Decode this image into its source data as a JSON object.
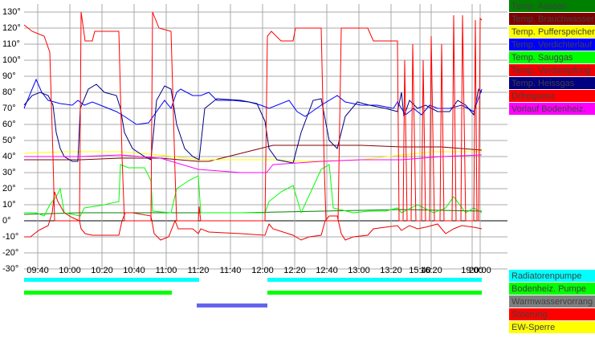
{
  "chart_data": {
    "type": "line",
    "xlim": [
      31.5,
      332.5
    ],
    "ylim": [
      -30,
      135
    ],
    "xticks": [
      {
        "value": 40,
        "label": "09:40"
      },
      {
        "value": 60,
        "label": "10:00"
      },
      {
        "value": 80,
        "label": "10:20"
      },
      {
        "value": 100,
        "label": "10:40"
      },
      {
        "value": 120,
        "label": "11:00"
      },
      {
        "value": 140,
        "label": "11:20"
      },
      {
        "value": 160,
        "label": "11:40"
      },
      {
        "value": 180,
        "label": "12:00"
      },
      {
        "value": 200,
        "label": "12:20"
      },
      {
        "value": 220,
        "label": "12:40"
      },
      {
        "value": 240,
        "label": "13:00"
      },
      {
        "value": 260,
        "label": "13:20"
      },
      {
        "value": 278,
        "label": "15:40"
      },
      {
        "value": 285,
        "label": "16:20"
      },
      {
        "value": 310.5,
        "label": "19:00"
      },
      {
        "value": 315.5,
        "label": "20:00"
      }
    ],
    "yticks": [
      {
        "value": 130,
        "label": "130°"
      },
      {
        "value": 120,
        "label": "120°"
      },
      {
        "value": 110,
        "label": "110°"
      },
      {
        "value": 100,
        "label": "100°"
      },
      {
        "value": 90,
        "label": "90°"
      },
      {
        "value": 80,
        "label": "80°"
      },
      {
        "value": 70,
        "label": "70°"
      },
      {
        "value": 60,
        "label": "60°"
      },
      {
        "value": 50,
        "label": "50°"
      },
      {
        "value": 40,
        "label": "40°"
      },
      {
        "value": 30,
        "label": "30°"
      },
      {
        "value": 20,
        "label": "20°"
      },
      {
        "value": 10,
        "label": "10°"
      },
      {
        "value": 0,
        "label": "0°"
      },
      {
        "value": -10,
        "label": "-10°"
      },
      {
        "value": -20,
        "label": "-20°"
      },
      {
        "value": -30,
        "label": "-30°"
      }
    ],
    "grid": true,
    "legend": "right",
    "series": [
      {
        "name": "Temp. Aussen",
        "color": "#008000",
        "x": [
          31.5,
          66.5,
          116.5,
          141.5,
          166.5,
          216.5,
          266.5,
          316.5
        ],
        "values": [
          4,
          5,
          5,
          5,
          5,
          6,
          7,
          6
        ]
      },
      {
        "name": "Temp. Brauchwasser",
        "color": "#800000",
        "x": [
          31.5,
          66.5,
          91.5,
          116.5,
          140,
          146.5,
          166.5,
          186.5,
          216.5,
          241.5,
          266.5,
          291.5,
          316.5
        ],
        "values": [
          38,
          38,
          39,
          39,
          37,
          37,
          42,
          47,
          47,
          47,
          46,
          46,
          44
        ]
      },
      {
        "name": "Temp. Pufferspeicher",
        "color": "#ffff00",
        "x": [
          31.5,
          56.5,
          91.5,
          116.5,
          140,
          166.5,
          186.5,
          206.5,
          241.5,
          266.5,
          286.5,
          316.5
        ],
        "values": [
          42,
          43,
          43,
          41,
          38,
          38,
          38,
          37,
          38,
          41,
          43,
          43
        ]
      },
      {
        "name": "Temp. Verdichterlauf",
        "color": "#0000ff",
        "x": [
          31.5,
          36.5,
          39,
          42.5,
          46.5,
          54,
          61.5,
          65,
          69,
          74,
          79,
          89,
          94,
          101.5,
          109,
          114,
          119,
          123,
          126.5,
          129,
          136.5,
          141.5,
          146.5,
          151.5,
          161.5,
          171.5,
          179,
          184,
          189,
          196.5,
          201.5,
          206.5,
          216.5,
          226.5,
          231.5,
          241.5,
          251.5,
          261.5,
          264,
          269,
          274,
          279,
          284,
          289,
          296.5,
          304,
          311.5,
          316.5
        ],
        "values": [
          70,
          82,
          88,
          80,
          75,
          73,
          72,
          75,
          72,
          74,
          72,
          68,
          65,
          60,
          61,
          68,
          75,
          70,
          80,
          82,
          78,
          78,
          80,
          75,
          75,
          74,
          72,
          70,
          72,
          75,
          68,
          65,
          72,
          78,
          74,
          72,
          72,
          70,
          74,
          66,
          70,
          66,
          72,
          70,
          70,
          72,
          68,
          82
        ]
      },
      {
        "name": "Temp. Sauggas",
        "color": "#00ff00",
        "x": [
          31.5,
          39,
          44,
          47.5,
          51.5,
          54,
          56.5,
          66.5,
          69,
          81.5,
          90.5,
          91.5,
          96.5,
          106.5,
          110.5,
          111.5,
          123,
          126.5,
          134,
          140,
          141.5,
          166.5,
          181.5,
          184,
          191.5,
          199,
          204,
          216.5,
          221.5,
          224,
          236.5,
          246.5,
          256.5,
          264,
          266.5,
          276.5,
          286.5,
          294,
          299,
          306.5,
          311.5,
          316.5
        ],
        "values": [
          5,
          5,
          3,
          10,
          15,
          20,
          5,
          3,
          8,
          10,
          12,
          35,
          33,
          33,
          25,
          6,
          5,
          20,
          25,
          28,
          5,
          5,
          5,
          12,
          18,
          22,
          5,
          32,
          35,
          8,
          5,
          6,
          6,
          8,
          5,
          10,
          5,
          8,
          15,
          5,
          8,
          5
        ]
      },
      {
        "name": "Temp. Verdampfung",
        "color": "#f00000",
        "x": [
          31.5,
          35.5,
          40.5,
          46.5,
          49,
          50.5,
          52.5,
          56.5,
          61.5,
          66,
          67,
          69.5,
          74,
          90.5,
          92.5,
          94.5,
          99,
          110.5,
          112.5,
          116.5,
          121.5,
          125.5,
          127.5,
          136.5,
          140,
          141.5,
          146.5,
          166.5,
          181.5,
          184,
          186.5,
          199,
          204,
          209,
          216.5,
          219,
          221.5,
          226.5,
          229,
          231.5,
          236.5,
          245.5,
          249,
          264,
          266.5,
          271.5,
          276.5,
          281.5,
          289,
          294,
          299,
          304,
          311.5,
          316.5
        ],
        "values": [
          -10,
          -10,
          -6,
          -3,
          5,
          18,
          12,
          5,
          2,
          0,
          -5,
          -8,
          -9,
          -9,
          0,
          5,
          5,
          3,
          -8,
          -12,
          -10,
          0,
          -5,
          -5,
          -8,
          -5,
          -7,
          -8,
          -9,
          -2,
          -5,
          -9,
          -12,
          -10,
          -9,
          0,
          3,
          3,
          -8,
          -12,
          -10,
          -9,
          -5,
          -3,
          -6,
          -3,
          -5,
          -4,
          -2,
          -8,
          -5,
          -3,
          -4,
          -5
        ]
      },
      {
        "name": "Temp. Heissgas",
        "color": "#000080",
        "x": [
          31.5,
          36.5,
          41.5,
          46.5,
          49.5,
          51.5,
          54,
          56.5,
          61.5,
          65,
          66.5,
          71.5,
          76.5,
          81.5,
          89,
          91.5,
          94,
          99,
          106.5,
          110.5,
          114,
          119,
          123,
          126.5,
          131.5,
          136.5,
          140.5,
          144,
          151.5,
          166.5,
          176.5,
          181.5,
          184,
          189,
          194,
          199,
          204,
          211.5,
          216.5,
          221.5,
          226.5,
          231.5,
          239,
          246.5,
          256.5,
          264,
          266.5,
          268,
          271.5,
          276.5,
          281.5,
          289,
          296.5,
          301.5,
          306.5,
          311.5,
          314.5,
          316.5
        ],
        "values": [
          72,
          78,
          80,
          78,
          72,
          55,
          45,
          40,
          37,
          37,
          70,
          82,
          85,
          80,
          78,
          70,
          55,
          45,
          40,
          38,
          75,
          84,
          82,
          60,
          45,
          40,
          38,
          70,
          76,
          75,
          73,
          62,
          45,
          38,
          37,
          36,
          55,
          75,
          76,
          50,
          45,
          65,
          74,
          72,
          70,
          68,
          80,
          65,
          75,
          70,
          72,
          68,
          68,
          75,
          72,
          66,
          82,
          80
        ]
      },
      {
        "name": "Drfrequenz",
        "color": "#ff0000",
        "x": [
          31.5,
          36.5,
          44,
          47.5,
          49.5,
          50.5,
          66,
          67,
          69.5,
          74,
          75.5,
          90.5,
          92.5,
          94,
          110.5,
          111.5,
          115.5,
          123,
          125.5,
          126.5,
          140,
          140.5,
          141.5,
          181.5,
          183,
          185.5,
          191.5,
          199,
          200.5,
          216.5,
          218.5,
          219.5,
          227,
          229,
          245.5,
          249,
          264,
          265,
          267.5,
          268.5,
          270,
          272.5,
          273.5,
          275.5,
          279,
          280,
          281.5,
          284,
          285,
          287,
          290.5,
          291.5,
          293,
          298,
          299,
          300.5,
          303.5,
          304.5,
          306.5,
          311.5,
          312.5,
          313.5,
          314.5,
          315.5,
          316.5
        ],
        "values": [
          122,
          118,
          115,
          105,
          40,
          0,
          0,
          130,
          112,
          112,
          118,
          118,
          40,
          0,
          0,
          130,
          120,
          118,
          30,
          0,
          0,
          9,
          0,
          0,
          115,
          118,
          112,
          112,
          120,
          120,
          30,
          0,
          0,
          120,
          120,
          112,
          112,
          0,
          0,
          100,
          0,
          0,
          110,
          0,
          0,
          100,
          0,
          0,
          115,
          0,
          0,
          110,
          0,
          0,
          128,
          0,
          0,
          128,
          0,
          0,
          125,
          0,
          0,
          126,
          125
        ]
      },
      {
        "name": "Vorlauf Bodenheiz.",
        "color": "#ff00ff",
        "x": [
          31.5,
          66.5,
          91.5,
          116.5,
          140,
          166.5,
          182.5,
          186.5,
          216.5,
          241.5,
          266.5,
          291.5,
          316.5
        ],
        "values": [
          40,
          40,
          41,
          39,
          32,
          30,
          30,
          35,
          37,
          38,
          38,
          40,
          41
        ]
      }
    ],
    "status": [
      {
        "name": "Radiatorenpumpe",
        "color": "#00ffff",
        "intervals": [
          [
            31.5,
            140.5
          ],
          [
            183,
            316.5
          ]
        ]
      },
      {
        "name": "Bodenheiz. Pumpe",
        "color": "#00ff00",
        "intervals": [
          [
            31.5,
            123.5
          ],
          [
            183,
            316.5
          ]
        ]
      },
      {
        "name": "Warmwasservorrang",
        "color": "#808080",
        "bar_color": "#6464f0",
        "intervals": [
          [
            139,
            183
          ]
        ]
      },
      {
        "name": "Stoerung",
        "color": "#ff0000",
        "intervals": []
      },
      {
        "name": "EW-Sperre",
        "color": "#ffff00",
        "intervals": []
      }
    ]
  }
}
